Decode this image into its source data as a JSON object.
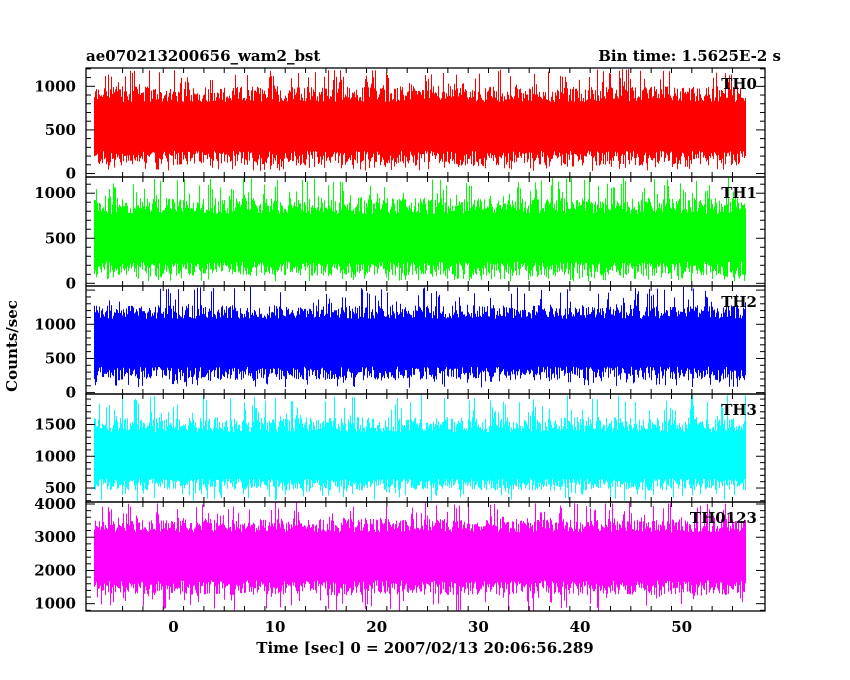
{
  "chart_data": {
    "type": "line",
    "title_left": "ae070213200656_wam2_bst",
    "title_right": "Bin time: 1.5625E-2 s",
    "xlabel": "Time [sec] 0 = 2007/02/13 20:06:56.289",
    "ylabel": "Counts/sec",
    "xlim": [
      -8.6,
      58.2
    ],
    "data_x_range": [
      -7.8,
      56.2
    ],
    "x_ticks": [
      0,
      10,
      20,
      30,
      40,
      50
    ],
    "x_tick_labels": [
      "0",
      "10",
      "20",
      "30",
      "40",
      "50"
    ],
    "grid": false,
    "panels": [
      {
        "name": "TH0",
        "color": "#ff0000",
        "ylim": [
          -40,
          1210
        ],
        "y_ticks": [
          0,
          500,
          1000
        ],
        "y_tick_labels": [
          "0",
          "500",
          "1000"
        ],
        "band_low": [
          90,
          260
        ],
        "band_high": [
          820,
          1000
        ],
        "spike_low": 30,
        "spike_high": 1200
      },
      {
        "name": "TH1",
        "color": "#00ff00",
        "ylim": [
          -30,
          1180
        ],
        "y_ticks": [
          0,
          500,
          1000
        ],
        "y_tick_labels": [
          "0",
          "500",
          "1000"
        ],
        "band_low": [
          80,
          240
        ],
        "band_high": [
          770,
          950
        ],
        "spike_low": 20,
        "spike_high": 1170
      },
      {
        "name": "TH2",
        "color": "#0000ff",
        "ylim": [
          -20,
          1560
        ],
        "y_ticks": [
          0,
          500,
          1000
        ],
        "y_tick_labels": [
          "0",
          "500",
          "1000"
        ],
        "band_low": [
          180,
          380
        ],
        "band_high": [
          1080,
          1280
        ],
        "spike_low": 70,
        "spike_high": 1550
      },
      {
        "name": "TH3",
        "color": "#00ffff",
        "ylim": [
          280,
          1980
        ],
        "y_ticks": [
          500,
          1000,
          1500
        ],
        "y_tick_labels": [
          "500",
          "1000",
          "1500"
        ],
        "band_low": [
          460,
          650
        ],
        "band_high": [
          1380,
          1620
        ],
        "spike_low": 290,
        "spike_high": 1970
      },
      {
        "name": "TH0123",
        "color": "#ff00ff",
        "ylim": [
          780,
          4060
        ],
        "y_ticks": [
          1000,
          2000,
          3000,
          4000
        ],
        "y_tick_labels": [
          "1000",
          "2000",
          "3000",
          "4000"
        ],
        "band_low": [
          1250,
          1700
        ],
        "band_high": [
          3150,
          3550
        ],
        "spike_low": 790,
        "spike_high": 4050
      }
    ]
  }
}
